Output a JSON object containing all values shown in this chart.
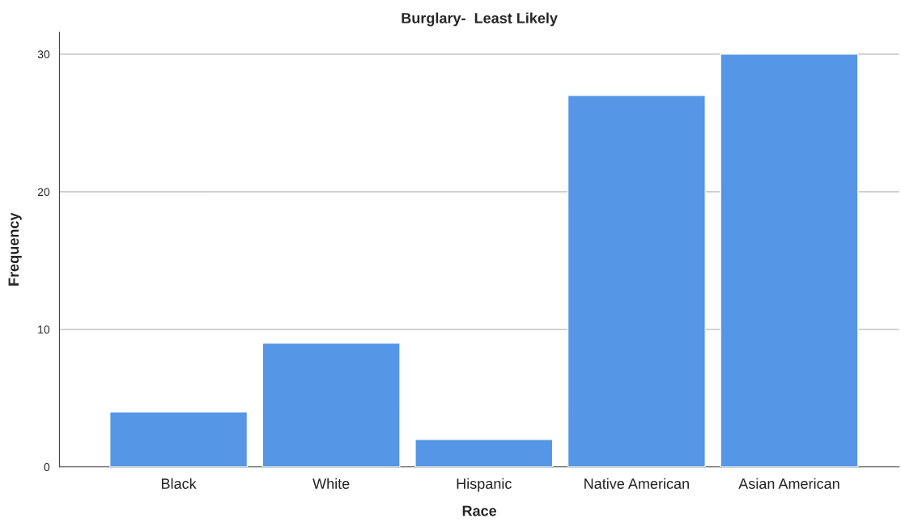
{
  "chart_data": {
    "type": "bar",
    "title": "Burglary-  Least Likely",
    "xlabel": "Race",
    "ylabel": "Frequency",
    "categories": [
      "Black",
      "White",
      "Hispanic",
      "Native American",
      "Asian American"
    ],
    "values": [
      4,
      9,
      2,
      27,
      30
    ],
    "color": "#5596e6",
    "ylim": [
      0,
      31.6
    ],
    "yticks": [
      0,
      10,
      20,
      30
    ],
    "grid": "y"
  }
}
